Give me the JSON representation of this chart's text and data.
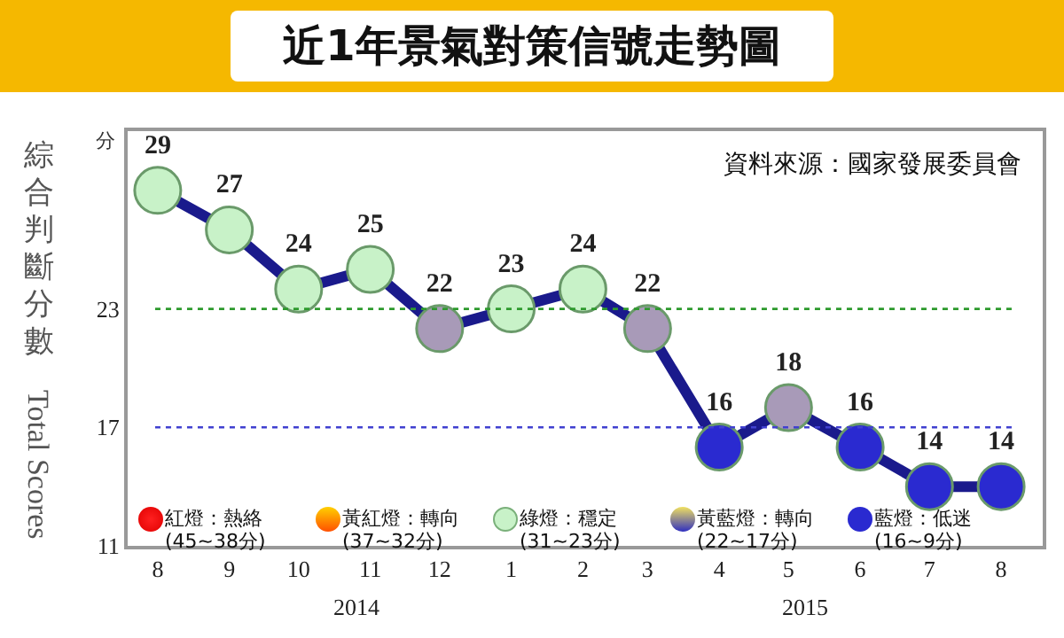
{
  "chart_data": {
    "type": "line",
    "title": "近1年景氣對策信號走勢圖",
    "ylabel": "綜合判斷分數 Total Scores",
    "x": [
      "2014-08",
      "2014-09",
      "2014-10",
      "2014-11",
      "2014-12",
      "2015-01",
      "2015-02",
      "2015-03",
      "2015-04",
      "2015-05",
      "2015-06",
      "2015-07",
      "2015-08"
    ],
    "xticks": [
      {
        "value": "2014-08",
        "label": "8"
      },
      {
        "value": "2014-09",
        "label": "9"
      },
      {
        "value": "2014-10",
        "label": "10"
      },
      {
        "value": "2014-11",
        "label": "11"
      },
      {
        "value": "2014-12",
        "label": "12"
      },
      {
        "value": "2015-01",
        "label": "1"
      },
      {
        "value": "2015-02",
        "label": "2"
      },
      {
        "value": "2015-03",
        "label": "3"
      },
      {
        "value": "2015-04",
        "label": "4"
      },
      {
        "value": "2015-05",
        "label": "5"
      },
      {
        "value": "2015-06",
        "label": "6"
      },
      {
        "value": "2015-07",
        "label": "7"
      },
      {
        "value": "2015-08",
        "label": "8"
      }
    ],
    "xlim": [
      "2014-07-19",
      "2015-08-19"
    ],
    "series": [
      {
        "color": "#1a1a8c",
        "values": [
          29,
          27,
          24,
          25,
          22,
          23,
          24,
          22,
          16,
          18,
          16,
          14,
          14
        ],
        "colors": [
          "#c8f2c8",
          "#c8f2c8",
          "#c8f2c8",
          "#c8f2c8",
          "#a89ab8",
          "#c8f2c8",
          "#c8f2c8",
          "#a89ab8",
          "#2a2ad0",
          "#a89ab8",
          "#2a2ad0",
          "#2a2ad0",
          "#2a2ad0"
        ]
      }
    ],
    "ylim": [
      11,
      32
    ],
    "yticks": [
      11,
      17,
      23
    ],
    "marker": "circle",
    "data_labels": true,
    "grid": false,
    "ref_lines": [
      {
        "axis": "y",
        "value": 23,
        "color": "#2e9a2e",
        "line_style": "dotted"
      },
      {
        "axis": "y",
        "value": 17,
        "color": "#4040d0",
        "line_style": "dotted"
      }
    ],
    "annotations": [
      "分",
      "資料來源：國家發展委員會",
      "2014",
      "2015",
      "紅燈：熱絡 (45~38分)",
      "黃紅燈：轉向 (37~32分)",
      "綠燈：穩定 (31~23分)",
      "黃藍燈：轉向 (22~17分)",
      "藍燈：低迷 (16~9分)"
    ]
  }
}
